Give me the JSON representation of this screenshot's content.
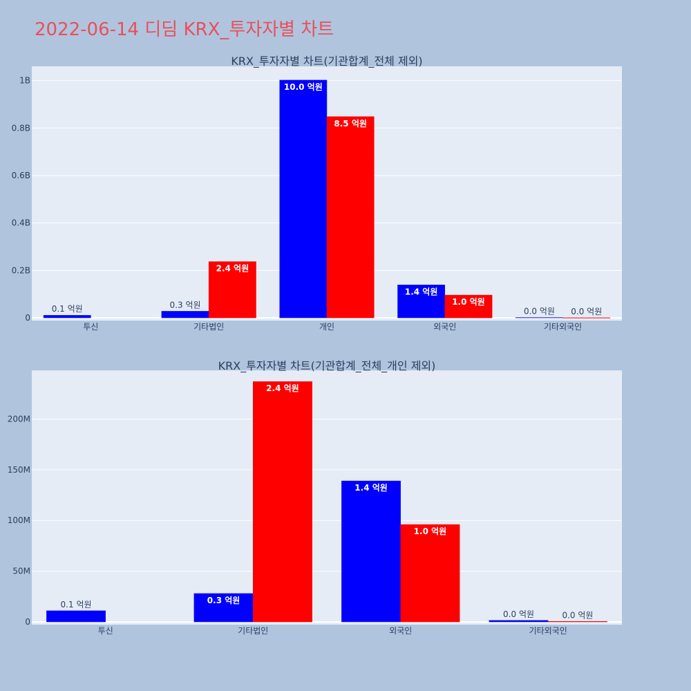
{
  "title": "2022-06-14 디딤 KRX_투자자별 차트",
  "colors": {
    "background": "#b0c4de",
    "plot_bg": "#e5ecf6",
    "buy": "#0000ff",
    "sell": "#ff0000",
    "title": "#e8505b"
  },
  "chart_data": [
    {
      "type": "bar",
      "title": "KRX_투자자별 차트(기관합계_전체 제외)",
      "categories": [
        "투신",
        "기타법인",
        "개인",
        "외국인",
        "기타외국인"
      ],
      "series": [
        {
          "color": "#0000ff",
          "values": [
            11000000,
            28000000,
            1002000000,
            139000000,
            1500000
          ],
          "labels": [
            "0.1 억원",
            "0.3 억원",
            "10.0 억원",
            "1.4 억원",
            "0.0 억원"
          ]
        },
        {
          "color": "#ff0000",
          "values": [
            0,
            237000000,
            848000000,
            96000000,
            500000
          ],
          "labels": [
            "",
            "2.4 억원",
            "8.5 억원",
            "1.0 억원",
            "0.0 억원"
          ]
        }
      ],
      "yticks": [
        0,
        200000000,
        400000000,
        600000000,
        800000000,
        1000000000
      ],
      "ytick_labels": [
        "0",
        "0.2B",
        "0.4B",
        "0.6B",
        "0.8B",
        "1B"
      ],
      "ylim": [
        0,
        1060000000
      ]
    },
    {
      "type": "bar",
      "title": "KRX_투자자별 차트(기관합계_전체_개인 제외)",
      "categories": [
        "투신",
        "기타법인",
        "외국인",
        "기타외국인"
      ],
      "series": [
        {
          "color": "#0000ff",
          "values": [
            11000000,
            28000000,
            139000000,
            1500000
          ],
          "labels": [
            "0.1 억원",
            "0.3 억원",
            "1.4 억원",
            "0.0 억원"
          ]
        },
        {
          "color": "#ff0000",
          "values": [
            0,
            237000000,
            96000000,
            500000
          ],
          "labels": [
            "",
            "2.4 억원",
            "1.0 억원",
            "0.0 억원"
          ]
        }
      ],
      "yticks": [
        0,
        50000000,
        100000000,
        150000000,
        200000000
      ],
      "ytick_labels": [
        "0",
        "50M",
        "100M",
        "150M",
        "200M"
      ],
      "ylim": [
        0,
        248000000
      ]
    }
  ]
}
